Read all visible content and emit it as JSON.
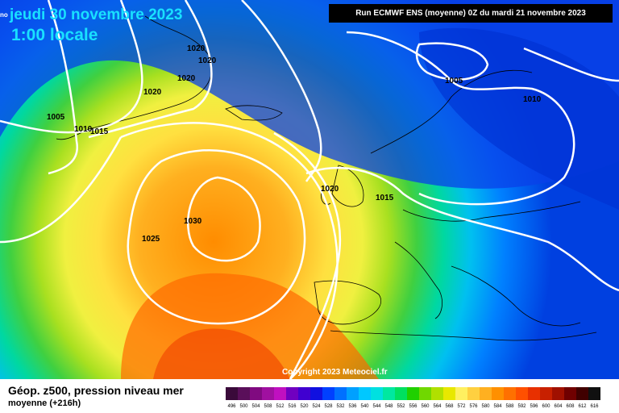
{
  "title": {
    "date": "jeudi 30 novembre 2023",
    "time": "1:00 locale",
    "corner": "no"
  },
  "run_info": "Run ECMWF ENS (moyenne) 0Z du mardi 21 novembre 2023",
  "copyright": "Copyright 2023 Meteociel.fr",
  "footer": {
    "title": "Géop. z500, pression niveau mer",
    "subtitle": "moyenne   (+216h)"
  },
  "isobars": [
    {
      "id": "iso-1005-nw",
      "value": "1005"
    },
    {
      "id": "iso-1010-nw",
      "value": "1010"
    },
    {
      "id": "iso-1015-nw",
      "value": "1015"
    },
    {
      "id": "iso-1020-a",
      "value": "1020"
    },
    {
      "id": "iso-1020-b",
      "value": "1020"
    },
    {
      "id": "iso-1020-c",
      "value": "1020"
    },
    {
      "id": "iso-1020-d",
      "value": "1020"
    },
    {
      "id": "iso-1005-ne",
      "value": "1005"
    },
    {
      "id": "iso-1010-ne",
      "value": "1010"
    },
    {
      "id": "iso-1020-w",
      "value": "1020"
    },
    {
      "id": "iso-1015-c",
      "value": "1015"
    },
    {
      "id": "iso-1030",
      "value": "1030"
    },
    {
      "id": "iso-1025",
      "value": "1025"
    }
  ],
  "legend": {
    "values": [
      "496",
      "500",
      "504",
      "508",
      "512",
      "516",
      "520",
      "524",
      "528",
      "532",
      "536",
      "540",
      "544",
      "548",
      "552",
      "556",
      "560",
      "564",
      "568",
      "572",
      "576",
      "580",
      "584",
      "588",
      "592",
      "596",
      "600",
      "604",
      "608",
      "612",
      "616"
    ],
    "colors": [
      "#3a0a3a",
      "#5a0f5a",
      "#800a80",
      "#a010a0",
      "#c010c0",
      "#7000c0",
      "#4000d0",
      "#1010e0",
      "#0040ff",
      "#0070ff",
      "#00a0ff",
      "#00c8ff",
      "#00e0e0",
      "#00e8a0",
      "#00e060",
      "#20d000",
      "#70d800",
      "#b0e000",
      "#e8e800",
      "#fff060",
      "#ffd040",
      "#ffb020",
      "#ff9000",
      "#ff7000",
      "#ff5000",
      "#e83000",
      "#c82000",
      "#a01000",
      "#700000",
      "#400000",
      "#101010"
    ]
  }
}
